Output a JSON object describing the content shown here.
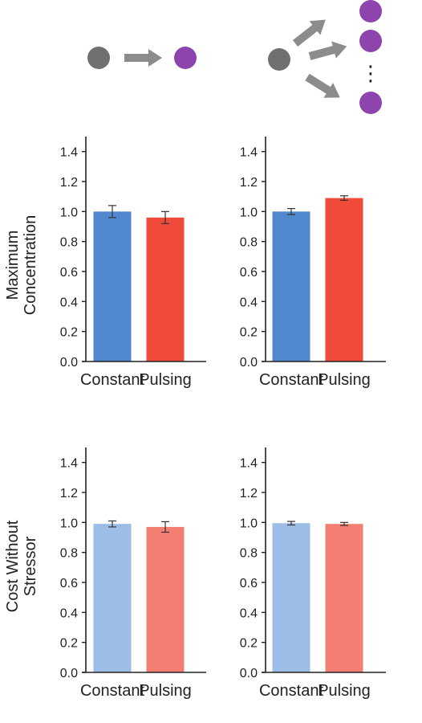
{
  "figure": {
    "y_labels": [
      [
        "Maximum",
        "Concentration"
      ],
      [
        "Cost Without",
        "Stressor"
      ]
    ],
    "ellipsis": "⋮",
    "colors": {
      "node_gray": "#707070",
      "node_purple": "#8e44ad",
      "arrow_gray": "#8c8c8c"
    }
  },
  "chart_data": [
    {
      "type": "bar",
      "categories": [
        "Constant",
        "Pulsing"
      ],
      "values": [
        1.0,
        0.96
      ],
      "errors": [
        0.04,
        0.04
      ],
      "ylim": [
        0,
        1.5
      ],
      "yticks": [
        "0.0",
        "0.2",
        "0.4",
        "0.6",
        "0.8",
        "1.0",
        "1.2",
        "1.4"
      ],
      "colors": [
        "#5289ce",
        "#ef4a3a"
      ],
      "ylabel": "Maximum Concentration"
    },
    {
      "type": "bar",
      "categories": [
        "Constant",
        "Pulsing"
      ],
      "values": [
        1.0,
        1.09
      ],
      "errors": [
        0.02,
        0.015
      ],
      "ylim": [
        0,
        1.5
      ],
      "yticks": [
        "0.0",
        "0.2",
        "0.4",
        "0.6",
        "0.8",
        "1.0",
        "1.2",
        "1.4"
      ],
      "colors": [
        "#5289ce",
        "#ef4a3a"
      ],
      "ylabel": ""
    },
    {
      "type": "bar",
      "categories": [
        "Constant",
        "Pulsing"
      ],
      "values": [
        0.99,
        0.97
      ],
      "errors": [
        0.02,
        0.035
      ],
      "ylim": [
        0,
        1.5
      ],
      "yticks": [
        "0.0",
        "0.2",
        "0.4",
        "0.6",
        "0.8",
        "1.0",
        "1.2",
        "1.4"
      ],
      "colors": [
        "#9bbde6",
        "#f37f73"
      ],
      "ylabel": "Cost Without Stressor"
    },
    {
      "type": "bar",
      "categories": [
        "Constant",
        "Pulsing"
      ],
      "values": [
        0.995,
        0.99
      ],
      "errors": [
        0.012,
        0.01
      ],
      "ylim": [
        0,
        1.5
      ],
      "yticks": [
        "0.0",
        "0.2",
        "0.4",
        "0.6",
        "0.8",
        "1.0",
        "1.2",
        "1.4"
      ],
      "colors": [
        "#9bbde6",
        "#f37f73"
      ],
      "ylabel": ""
    }
  ]
}
